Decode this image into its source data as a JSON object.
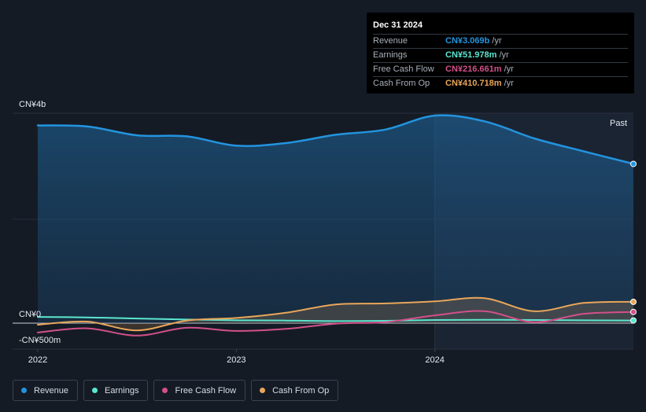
{
  "tooltip": {
    "date": "Dec 31 2024",
    "rows": [
      {
        "label": "Revenue",
        "value": "CN¥3.069b",
        "unit": "/yr",
        "color": "#2394df"
      },
      {
        "label": "Earnings",
        "value": "CN¥51.978m",
        "unit": "/yr",
        "color": "#5ce6cf"
      },
      {
        "label": "Free Cash Flow",
        "value": "CN¥216.661m",
        "unit": "/yr",
        "color": "#d2508a"
      },
      {
        "label": "Cash From Op",
        "value": "CN¥410.718m",
        "unit": "/yr",
        "color": "#e9a65a"
      }
    ]
  },
  "legend": [
    {
      "label": "Revenue",
      "color": "#2394df"
    },
    {
      "label": "Earnings",
      "color": "#5ce6cf"
    },
    {
      "label": "Free Cash Flow",
      "color": "#d2508a"
    },
    {
      "label": "Cash From Op",
      "color": "#e9a65a"
    }
  ],
  "chart_data": {
    "type": "area",
    "past_label": "Past",
    "y_ticks": [
      {
        "value": 4000,
        "label": "CN¥4b"
      },
      {
        "value": 0,
        "label": "CN¥0"
      },
      {
        "value": -500,
        "label": "-CN¥500m"
      }
    ],
    "x_ticks": [
      {
        "value": 2022.0,
        "label": "2022"
      },
      {
        "value": 2023.0,
        "label": "2023"
      },
      {
        "value": 2024.0,
        "label": "2024"
      }
    ],
    "ylim": [
      -500,
      4000
    ],
    "xlim": [
      2022.0,
      2025.0
    ],
    "x": [
      2022.0,
      2022.25,
      2022.5,
      2022.75,
      2023.0,
      2023.25,
      2023.5,
      2023.75,
      2024.0,
      2024.25,
      2024.5,
      2024.75,
      2025.0
    ],
    "series": [
      {
        "name": "Revenue",
        "color": "#2394df",
        "fill": true,
        "values": [
          3810,
          3790,
          3620,
          3600,
          3420,
          3470,
          3630,
          3730,
          4000,
          3890,
          3560,
          3310,
          3069
        ]
      },
      {
        "name": "Earnings",
        "color": "#5ce6cf",
        "fill": false,
        "values": [
          120,
          110,
          90,
          70,
          55,
          50,
          40,
          45,
          60,
          65,
          60,
          55,
          51.978
        ]
      },
      {
        "name": "Free Cash Flow",
        "color": "#d2508a",
        "fill": false,
        "values": [
          -180,
          -100,
          -240,
          -90,
          -150,
          -110,
          -10,
          20,
          150,
          230,
          20,
          180,
          216.661
        ]
      },
      {
        "name": "Cash From Op",
        "color": "#e9a65a",
        "fill": true,
        "values": [
          -30,
          30,
          -140,
          50,
          100,
          200,
          360,
          380,
          420,
          480,
          230,
          390,
          410.718
        ]
      }
    ]
  }
}
